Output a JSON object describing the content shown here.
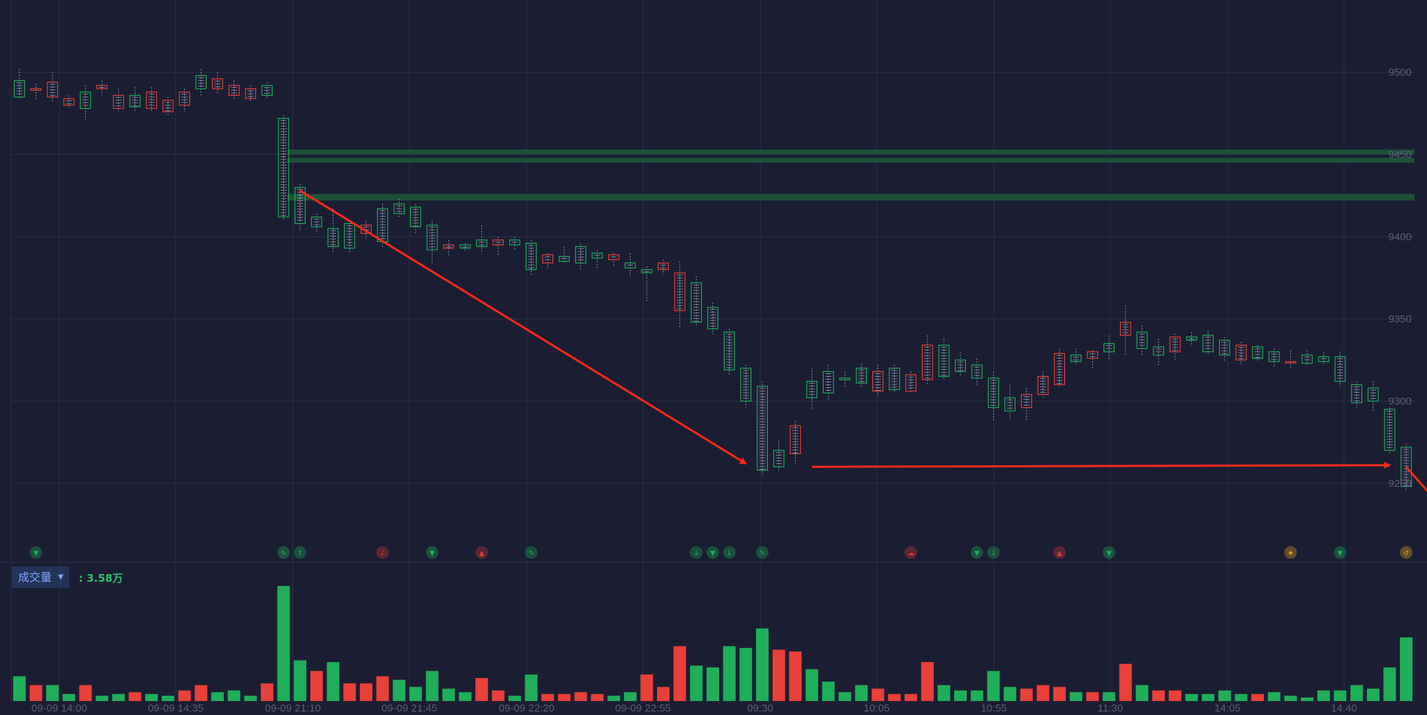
{
  "chart_data": [
    {
      "type": "candlestick",
      "title": "",
      "y_ticks": [
        9500,
        9450,
        9400,
        9350,
        9300,
        9250
      ],
      "ylim": [
        9213,
        9527
      ],
      "x_labels": [
        "09-09 14:00",
        "09-09 14:35",
        "09-09 21:10",
        "09-09 21:45",
        "09-09 22:20",
        "09-09 22:55",
        "09:30",
        "10:05",
        "10:55",
        "11:30",
        "14:05",
        "14:40"
      ],
      "candles_ohlc": [
        [
          9495,
          9502,
          9484,
          9485
        ],
        [
          9489,
          9493,
          9483,
          9490
        ],
        [
          9485,
          9500,
          9482,
          9494
        ],
        [
          9480,
          9486,
          9478,
          9484
        ],
        [
          9488,
          9492,
          9470,
          9478
        ],
        [
          9490,
          9495,
          9486,
          9492
        ],
        [
          9478,
          9490,
          9476,
          9486
        ],
        [
          9486,
          9491,
          9476,
          9479
        ],
        [
          9478,
          9491,
          9476,
          9488
        ],
        [
          9476,
          9485,
          9474,
          9483
        ],
        [
          9480,
          9490,
          9476,
          9488
        ],
        [
          9498,
          9502,
          9486,
          9490
        ],
        [
          9490,
          9500,
          9487,
          9496
        ],
        [
          9486,
          9495,
          9484,
          9492
        ],
        [
          9484,
          9492,
          9482,
          9490
        ],
        [
          9492,
          9494,
          9484,
          9486
        ],
        [
          9472,
          9474,
          9410,
          9412
        ],
        [
          9430,
          9432,
          9404,
          9408
        ],
        [
          9412,
          9414,
          9402,
          9406
        ],
        [
          9405,
          9417,
          9390,
          9394
        ],
        [
          9408,
          9410,
          9390,
          9393
        ],
        [
          9402,
          9410,
          9398,
          9407
        ],
        [
          9417,
          9420,
          9393,
          9397
        ],
        [
          9420,
          9423,
          9412,
          9414
        ],
        [
          9418,
          9420,
          9402,
          9406
        ],
        [
          9407,
          9410,
          9384,
          9392
        ],
        [
          9393,
          9398,
          9388,
          9395
        ],
        [
          9395,
          9396,
          9391,
          9393
        ],
        [
          9398,
          9407,
          9390,
          9394
        ],
        [
          9395,
          9400,
          9388,
          9398
        ],
        [
          9398,
          9400,
          9392,
          9395
        ],
        [
          9396,
          9398,
          9376,
          9380
        ],
        [
          9384,
          9390,
          9380,
          9389
        ],
        [
          9388,
          9394,
          9384,
          9385
        ],
        [
          9394,
          9396,
          9380,
          9384
        ],
        [
          9390,
          9392,
          9380,
          9387
        ],
        [
          9386,
          9390,
          9382,
          9389
        ],
        [
          9384,
          9390,
          9376,
          9381
        ],
        [
          9380,
          9382,
          9360,
          9378
        ],
        [
          9380,
          9386,
          9377,
          9384
        ],
        [
          9355,
          9385,
          9345,
          9378
        ],
        [
          9372,
          9376,
          9345,
          9348
        ],
        [
          9357,
          9360,
          9340,
          9344
        ],
        [
          9342,
          9344,
          9315,
          9319
        ],
        [
          9320,
          9322,
          9296,
          9300
        ],
        [
          9309,
          9312,
          9254,
          9258
        ],
        [
          9270,
          9276,
          9257,
          9260
        ],
        [
          9268,
          9288,
          9262,
          9285
        ],
        [
          9312,
          9320,
          9295,
          9302
        ],
        [
          9318,
          9322,
          9300,
          9305
        ],
        [
          9314,
          9318,
          9308,
          9313
        ],
        [
          9320,
          9323,
          9308,
          9311
        ],
        [
          9306,
          9322,
          9303,
          9318
        ],
        [
          9320,
          9322,
          9305,
          9307
        ],
        [
          9306,
          9318,
          9305,
          9316
        ],
        [
          9313,
          9340,
          9310,
          9334
        ],
        [
          9334,
          9338,
          9313,
          9315
        ],
        [
          9325,
          9330,
          9315,
          9318
        ],
        [
          9322,
          9326,
          9310,
          9314
        ],
        [
          9314,
          9318,
          9288,
          9296
        ],
        [
          9302,
          9310,
          9289,
          9294
        ],
        [
          9296,
          9308,
          9288,
          9304
        ],
        [
          9304,
          9318,
          9302,
          9315
        ],
        [
          9310,
          9332,
          9308,
          9329
        ],
        [
          9328,
          9332,
          9322,
          9324
        ],
        [
          9326,
          9331,
          9320,
          9330
        ],
        [
          9335,
          9340,
          9325,
          9330
        ],
        [
          9340,
          9358,
          9328,
          9348
        ],
        [
          9342,
          9346,
          9328,
          9332
        ],
        [
          9333,
          9338,
          9322,
          9328
        ],
        [
          9330,
          9341,
          9325,
          9339
        ],
        [
          9339,
          9342,
          9334,
          9337
        ],
        [
          9340,
          9343,
          9328,
          9330
        ],
        [
          9337,
          9339,
          9324,
          9328
        ],
        [
          9325,
          9336,
          9322,
          9334
        ],
        [
          9333,
          9334,
          9324,
          9326
        ],
        [
          9330,
          9332,
          9320,
          9324
        ],
        [
          9324,
          9331,
          9320,
          9324
        ],
        [
          9328,
          9331,
          9322,
          9323
        ],
        [
          9327,
          9330,
          9322,
          9324
        ],
        [
          9327,
          9330,
          9309,
          9312
        ],
        [
          9310,
          9312,
          9296,
          9299
        ],
        [
          9308,
          9312,
          9294,
          9300
        ],
        [
          9295,
          9296,
          9268,
          9270
        ],
        [
          9272,
          9274,
          9245,
          9248
        ]
      ],
      "support_zones": [
        [
          9450,
          9453
        ],
        [
          9445,
          9448
        ],
        [
          9422,
          9426
        ]
      ]
    },
    {
      "type": "bar",
      "title": "成交量",
      "value_label": ": 3.58万",
      "values": [
        14,
        9,
        9,
        4,
        9,
        3,
        4,
        5,
        4,
        3,
        6,
        9,
        5,
        6,
        3,
        10,
        65,
        23,
        17,
        22,
        10,
        10,
        14,
        12,
        8,
        17,
        7,
        5,
        13,
        6,
        3,
        15,
        4,
        4,
        5,
        4,
        3,
        5,
        15,
        8,
        31,
        20,
        19,
        31,
        30,
        41,
        29,
        28,
        18,
        11,
        5,
        9,
        7,
        4,
        4,
        22,
        9,
        6,
        6,
        17,
        8,
        7,
        9,
        8,
        5,
        5,
        5,
        21,
        9,
        6,
        6,
        4,
        4,
        6,
        4,
        4,
        5,
        3,
        2,
        6,
        6,
        9,
        7,
        19,
        36
      ],
      "up_down": [
        1,
        -1,
        1,
        1,
        -1,
        1,
        1,
        -1,
        1,
        1,
        -1,
        -1,
        1,
        1,
        1,
        -1,
        1,
        1,
        -1,
        1,
        -1,
        -1,
        -1,
        1,
        1,
        1,
        1,
        1,
        -1,
        -1,
        1,
        1,
        -1,
        -1,
        -1,
        -1,
        1,
        1,
        -1,
        -1,
        -1,
        1,
        1,
        1,
        1,
        1,
        -1,
        -1,
        1,
        1,
        1,
        1,
        -1,
        -1,
        -1,
        -1,
        1,
        1,
        1,
        1,
        1,
        -1,
        -1,
        -1,
        1,
        -1,
        1,
        -1,
        1,
        -1,
        -1,
        1,
        1,
        1,
        1,
        -1,
        1,
        1,
        1,
        1,
        1,
        1,
        1,
        1,
        1
      ],
      "up_color": "#e8403a",
      "down_color": "#1fae5a"
    }
  ],
  "annotations": {
    "arrow_color": "#ff2a1a",
    "arrows": [
      {
        "from": [
          17,
          9428
        ],
        "to": [
          44,
          9262
        ]
      },
      {
        "from": [
          48,
          9260
        ],
        "to": [
          83,
          9261
        ]
      },
      {
        "from": [
          84,
          9260
        ],
        "to": [
          86,
          9237
        ]
      }
    ]
  },
  "signal_icons": [
    {
      "i": 1,
      "color": "#1fae5a",
      "glyph": "▼"
    },
    {
      "i": 16,
      "color": "#1fae5a",
      "glyph": "✎"
    },
    {
      "i": 17,
      "color": "#1fae5a",
      "glyph": "⇑"
    },
    {
      "i": 22,
      "color": "#d83a3a",
      "glyph": "♪"
    },
    {
      "i": 25,
      "color": "#1fae5a",
      "glyph": "▼"
    },
    {
      "i": 28,
      "color": "#d83a3a",
      "glyph": "▲"
    },
    {
      "i": 31,
      "color": "#1fae5a",
      "glyph": "✎"
    },
    {
      "i": 41,
      "color": "#1fae5a",
      "glyph": "↓"
    },
    {
      "i": 42,
      "color": "#1fae5a",
      "glyph": "▼"
    },
    {
      "i": 43,
      "color": "#1fae5a",
      "glyph": "↓"
    },
    {
      "i": 45,
      "color": "#1fae5a",
      "glyph": "✎"
    },
    {
      "i": 54,
      "color": "#d83a3a",
      "glyph": "☁"
    },
    {
      "i": 58,
      "color": "#1fae5a",
      "glyph": "▼"
    },
    {
      "i": 59,
      "color": "#1fae5a",
      "glyph": "↓"
    },
    {
      "i": 63,
      "color": "#d83a3a",
      "glyph": "▲"
    },
    {
      "i": 66,
      "color": "#1fae5a",
      "glyph": "▼"
    },
    {
      "i": 77,
      "color": "#e8a21a",
      "glyph": "★"
    },
    {
      "i": 80,
      "color": "#1fae5a",
      "glyph": "▼"
    },
    {
      "i": 84,
      "color": "#e8a21a",
      "glyph": "↺"
    }
  ],
  "volume_panel": {
    "selector_label": "成交量",
    "value_text": ": 3.58万"
  }
}
